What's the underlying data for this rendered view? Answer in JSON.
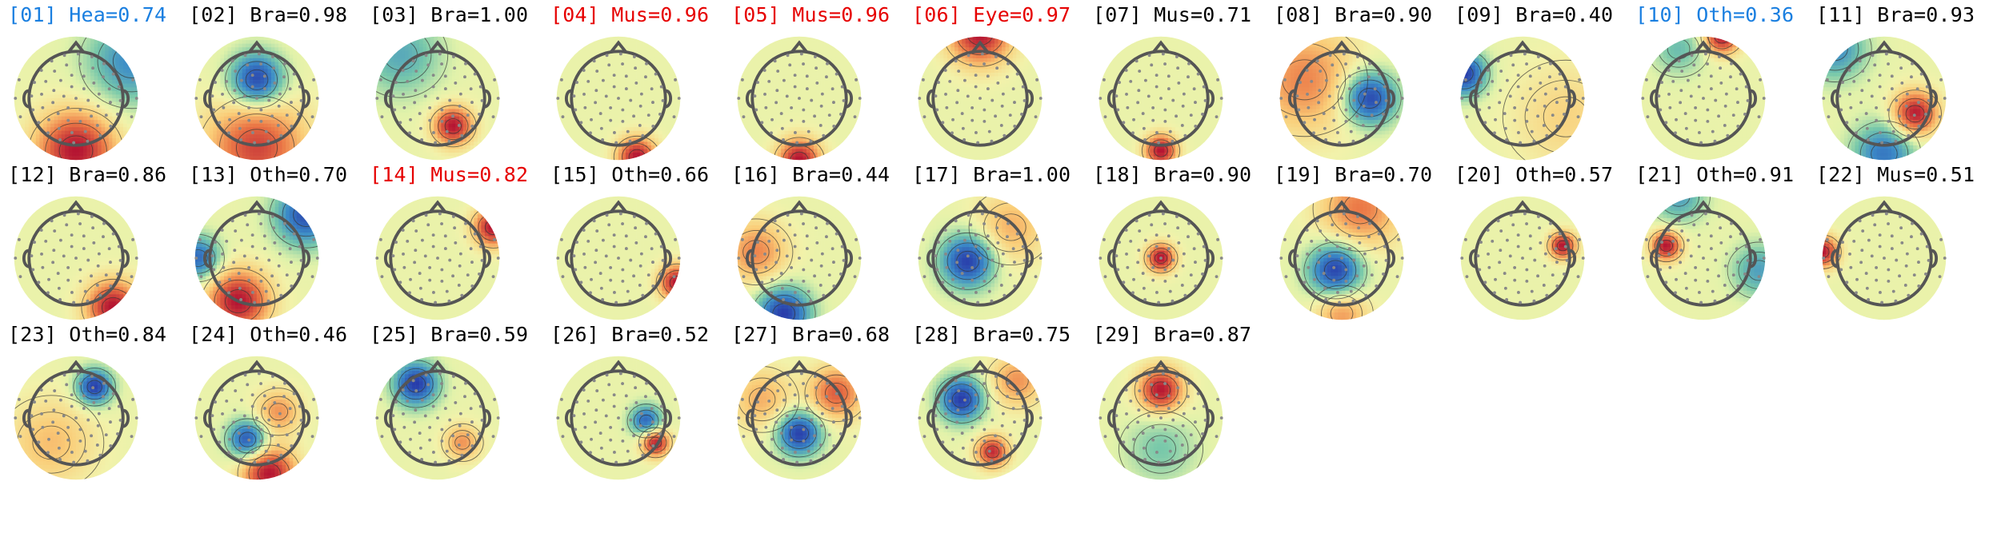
{
  "title": "",
  "colors": {
    "default": "#000000",
    "artifact": "#e60000",
    "other_low": "#1a7fe0"
  },
  "chart_data": {
    "type": "topomap-grid",
    "title": "",
    "rows": 3,
    "columns": 11,
    "components": [
      {
        "index": "01",
        "label": "[01] Hea=0.74",
        "class": "Hea",
        "prob": 0.74,
        "color": "blue",
        "peaks": [
          {
            "x": 0.0,
            "y": -0.85,
            "sign": 1,
            "amp": 1.0,
            "spread": 0.45
          },
          {
            "x": 0.9,
            "y": 0.6,
            "sign": -1,
            "amp": 0.6,
            "spread": 0.5
          }
        ]
      },
      {
        "index": "02",
        "label": "[02] Bra=0.98",
        "class": "Bra",
        "prob": 0.98,
        "color": "black",
        "peaks": [
          {
            "x": 0.0,
            "y": 0.3,
            "sign": -1,
            "amp": 1.0,
            "spread": 0.3
          },
          {
            "x": 0.0,
            "y": -0.8,
            "sign": 1,
            "amp": 0.8,
            "spread": 0.55
          }
        ]
      },
      {
        "index": "03",
        "label": "[03] Bra=1.00",
        "class": "Bra",
        "prob": 1.0,
        "color": "black",
        "peaks": [
          {
            "x": 0.25,
            "y": -0.45,
            "sign": 1,
            "amp": 1.0,
            "spread": 0.22
          },
          {
            "x": -0.6,
            "y": 0.7,
            "sign": -1,
            "amp": 0.45,
            "spread": 0.45
          }
        ]
      },
      {
        "index": "04",
        "label": "[04] Mus=0.96",
        "class": "Mus",
        "prob": 0.96,
        "color": "red",
        "peaks": [
          {
            "x": 0.3,
            "y": -0.95,
            "sign": 1,
            "amp": 1.0,
            "spread": 0.22
          }
        ]
      },
      {
        "index": "05",
        "label": "[05] Mus=0.96",
        "class": "Mus",
        "prob": 0.96,
        "color": "red",
        "peaks": [
          {
            "x": 0.0,
            "y": -1.0,
            "sign": 1,
            "amp": 1.0,
            "spread": 0.24
          }
        ]
      },
      {
        "index": "06",
        "label": "[06] Eye=0.97",
        "class": "Eye",
        "prob": 0.97,
        "color": "red",
        "peaks": [
          {
            "x": 0.0,
            "y": 1.05,
            "sign": 1,
            "amp": 1.0,
            "spread": 0.35
          }
        ]
      },
      {
        "index": "07",
        "label": "[07] Mus=0.71",
        "class": "Mus",
        "prob": 0.71,
        "color": "black",
        "peaks": [
          {
            "x": 0.0,
            "y": -0.85,
            "sign": 1,
            "amp": 1.0,
            "spread": 0.18
          }
        ]
      },
      {
        "index": "08",
        "label": "[08] Bra=0.90",
        "class": "Bra",
        "prob": 0.9,
        "color": "black",
        "peaks": [
          {
            "x": 0.45,
            "y": 0.0,
            "sign": -1,
            "amp": 1.0,
            "spread": 0.3
          },
          {
            "x": -0.6,
            "y": 0.3,
            "sign": 1,
            "amp": 0.55,
            "spread": 0.6
          }
        ]
      },
      {
        "index": "09",
        "label": "[09] Bra=0.40",
        "class": "Bra",
        "prob": 0.4,
        "color": "black",
        "peaks": [
          {
            "x": -0.95,
            "y": 0.4,
            "sign": -1,
            "amp": 1.0,
            "spread": 0.25
          },
          {
            "x": 0.7,
            "y": -0.3,
            "sign": 1,
            "amp": 0.25,
            "spread": 0.6
          }
        ]
      },
      {
        "index": "10",
        "label": "[10] Oth=0.36",
        "class": "Oth",
        "prob": 0.36,
        "color": "blue",
        "peaks": [
          {
            "x": 0.3,
            "y": 1.0,
            "sign": 1,
            "amp": 1.0,
            "spread": 0.2
          },
          {
            "x": -0.4,
            "y": 0.8,
            "sign": -1,
            "amp": 0.35,
            "spread": 0.3
          }
        ]
      },
      {
        "index": "11",
        "label": "[11] Bra=0.93",
        "class": "Bra",
        "prob": 0.93,
        "color": "black",
        "peaks": [
          {
            "x": 0.5,
            "y": -0.25,
            "sign": 1,
            "amp": 1.0,
            "spread": 0.25
          },
          {
            "x": -0.8,
            "y": 0.8,
            "sign": -1,
            "amp": 0.6,
            "spread": 0.35
          },
          {
            "x": 0.0,
            "y": -0.9,
            "sign": -1,
            "amp": 0.7,
            "spread": 0.35
          }
        ]
      },
      {
        "index": "12",
        "label": "[12] Bra=0.86",
        "class": "Bra",
        "prob": 0.86,
        "color": "black",
        "peaks": [
          {
            "x": 0.6,
            "y": -0.8,
            "sign": 1,
            "amp": 1.0,
            "spread": 0.3
          }
        ]
      },
      {
        "index": "13",
        "label": "[13] Oth=0.70",
        "class": "Oth",
        "prob": 0.7,
        "color": "black",
        "peaks": [
          {
            "x": -0.3,
            "y": -0.7,
            "sign": 1,
            "amp": 0.9,
            "spread": 0.35
          },
          {
            "x": 0.8,
            "y": 0.7,
            "sign": -1,
            "amp": 0.8,
            "spread": 0.35
          },
          {
            "x": -0.95,
            "y": 0.0,
            "sign": -1,
            "amp": 0.7,
            "spread": 0.25
          }
        ]
      },
      {
        "index": "14",
        "label": "[14] Mus=0.82",
        "class": "Mus",
        "prob": 0.82,
        "color": "red",
        "peaks": [
          {
            "x": 0.9,
            "y": 0.5,
            "sign": 1,
            "amp": 1.0,
            "spread": 0.22
          }
        ]
      },
      {
        "index": "15",
        "label": "[15] Oth=0.66",
        "class": "Oth",
        "prob": 0.66,
        "color": "black",
        "peaks": [
          {
            "x": 0.95,
            "y": -0.4,
            "sign": 1,
            "amp": 0.7,
            "spread": 0.2
          }
        ]
      },
      {
        "index": "16",
        "label": "[16] Bra=0.44",
        "class": "Bra",
        "prob": 0.44,
        "color": "black",
        "peaks": [
          {
            "x": -0.25,
            "y": -0.9,
            "sign": -1,
            "amp": 1.0,
            "spread": 0.3
          },
          {
            "x": -0.7,
            "y": 0.1,
            "sign": 1,
            "amp": 0.55,
            "spread": 0.35
          }
        ]
      },
      {
        "index": "17",
        "label": "[17] Bra=1.00",
        "class": "Bra",
        "prob": 1.0,
        "color": "black",
        "peaks": [
          {
            "x": -0.2,
            "y": -0.05,
            "sign": -1,
            "amp": 1.0,
            "spread": 0.3
          },
          {
            "x": 0.5,
            "y": 0.5,
            "sign": 1,
            "amp": 0.4,
            "spread": 0.4
          }
        ]
      },
      {
        "index": "18",
        "label": "[18] Bra=0.90",
        "class": "Bra",
        "prob": 0.9,
        "color": "black",
        "peaks": [
          {
            "x": 0.0,
            "y": 0.0,
            "sign": 1,
            "amp": 1.0,
            "spread": 0.16
          }
        ]
      },
      {
        "index": "19",
        "label": "[19] Bra=0.70",
        "class": "Bra",
        "prob": 0.7,
        "color": "black",
        "peaks": [
          {
            "x": -0.1,
            "y": -0.2,
            "sign": -1,
            "amp": 1.0,
            "spread": 0.3
          },
          {
            "x": 0.3,
            "y": 0.8,
            "sign": 1,
            "amp": 0.6,
            "spread": 0.45
          },
          {
            "x": 0.0,
            "y": -0.9,
            "sign": 1,
            "amp": 0.5,
            "spread": 0.3
          }
        ]
      },
      {
        "index": "20",
        "label": "[20] Oth=0.57",
        "class": "Oth",
        "prob": 0.57,
        "color": "black",
        "peaks": [
          {
            "x": 0.65,
            "y": 0.2,
            "sign": 1,
            "amp": 1.0,
            "spread": 0.15
          }
        ]
      },
      {
        "index": "21",
        "label": "[21] Oth=0.91",
        "class": "Oth",
        "prob": 0.91,
        "color": "black",
        "peaks": [
          {
            "x": -0.6,
            "y": 0.2,
            "sign": 1,
            "amp": 1.0,
            "spread": 0.17
          },
          {
            "x": 0.9,
            "y": -0.2,
            "sign": -1,
            "amp": 0.5,
            "spread": 0.3
          },
          {
            "x": -0.4,
            "y": 1.0,
            "sign": -1,
            "amp": 0.5,
            "spread": 0.3
          }
        ]
      },
      {
        "index": "22",
        "label": "[22] Mus=0.51",
        "class": "Mus",
        "prob": 0.51,
        "color": "black",
        "peaks": [
          {
            "x": -1.0,
            "y": 0.1,
            "sign": 1,
            "amp": 0.9,
            "spread": 0.18
          }
        ]
      },
      {
        "index": "23",
        "label": "[23] Oth=0.84",
        "class": "Oth",
        "prob": 0.84,
        "color": "black",
        "peaks": [
          {
            "x": 0.3,
            "y": 0.5,
            "sign": -1,
            "amp": 1.0,
            "spread": 0.2
          },
          {
            "x": -0.4,
            "y": -0.4,
            "sign": 1,
            "amp": 0.35,
            "spread": 0.5
          }
        ]
      },
      {
        "index": "24",
        "label": "[24] Oth=0.46",
        "class": "Oth",
        "prob": 0.46,
        "color": "black",
        "peaks": [
          {
            "x": -0.15,
            "y": -0.35,
            "sign": -1,
            "amp": 0.9,
            "spread": 0.22
          },
          {
            "x": 0.2,
            "y": -0.9,
            "sign": 1,
            "amp": 1.0,
            "spread": 0.3
          },
          {
            "x": 0.35,
            "y": 0.1,
            "sign": 1,
            "amp": 0.5,
            "spread": 0.25
          }
        ]
      },
      {
        "index": "25",
        "label": "[25] Bra=0.59",
        "class": "Bra",
        "prob": 0.59,
        "color": "black",
        "peaks": [
          {
            "x": -0.35,
            "y": 0.55,
            "sign": -1,
            "amp": 1.0,
            "spread": 0.25
          },
          {
            "x": 0.4,
            "y": -0.4,
            "sign": 1,
            "amp": 0.5,
            "spread": 0.2
          }
        ]
      },
      {
        "index": "26",
        "label": "[26] Bra=0.52",
        "class": "Bra",
        "prob": 0.52,
        "color": "black",
        "peaks": [
          {
            "x": 0.45,
            "y": -0.05,
            "sign": -1,
            "amp": 0.8,
            "spread": 0.18
          },
          {
            "x": 0.6,
            "y": -0.4,
            "sign": 1,
            "amp": 1.0,
            "spread": 0.16
          }
        ]
      },
      {
        "index": "27",
        "label": "[27] Bra=0.68",
        "class": "Bra",
        "prob": 0.68,
        "color": "black",
        "peaks": [
          {
            "x": 0.0,
            "y": -0.25,
            "sign": -1,
            "amp": 1.0,
            "spread": 0.25
          },
          {
            "x": 0.6,
            "y": 0.4,
            "sign": 1,
            "amp": 0.7,
            "spread": 0.3
          },
          {
            "x": -0.6,
            "y": 0.3,
            "sign": 1,
            "amp": 0.4,
            "spread": 0.35
          }
        ]
      },
      {
        "index": "28",
        "label": "[28] Bra=0.75",
        "class": "Bra",
        "prob": 0.75,
        "color": "black",
        "peaks": [
          {
            "x": -0.3,
            "y": 0.3,
            "sign": -1,
            "amp": 1.0,
            "spread": 0.25
          },
          {
            "x": 0.2,
            "y": -0.55,
            "sign": 1,
            "amp": 0.9,
            "spread": 0.18
          },
          {
            "x": 0.6,
            "y": 0.6,
            "sign": 1,
            "amp": 0.5,
            "spread": 0.3
          }
        ]
      },
      {
        "index": "29",
        "label": "[29] Bra=0.87",
        "class": "Bra",
        "prob": 0.87,
        "color": "black",
        "peaks": [
          {
            "x": 0.0,
            "y": 0.45,
            "sign": 1,
            "amp": 1.0,
            "spread": 0.25
          },
          {
            "x": 0.0,
            "y": -0.5,
            "sign": -1,
            "amp": 0.3,
            "spread": 0.4
          }
        ]
      }
    ]
  }
}
